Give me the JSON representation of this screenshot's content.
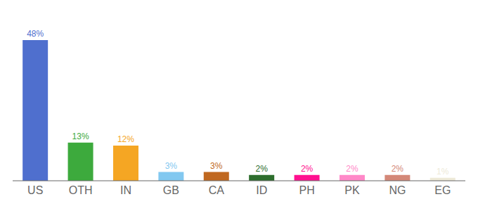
{
  "chart_data": {
    "type": "bar",
    "categories": [
      "US",
      "OTH",
      "IN",
      "GB",
      "CA",
      "ID",
      "PH",
      "PK",
      "NG",
      "EG"
    ],
    "values": [
      48,
      13,
      12,
      3,
      3,
      2,
      2,
      2,
      2,
      1
    ],
    "value_labels": [
      "48%",
      "13%",
      "12%",
      "3%",
      "3%",
      "2%",
      "2%",
      "2%",
      "2%",
      "1%"
    ],
    "colors": [
      "#4f6fce",
      "#3daa3d",
      "#f5a623",
      "#82c8f0",
      "#c06820",
      "#2d6e2d",
      "#ff1090",
      "#ff88c8",
      "#d48878",
      "#eeead8"
    ],
    "ylim": [
      0,
      54
    ],
    "grid": false,
    "data_labels": true,
    "tick_labels": "x"
  }
}
